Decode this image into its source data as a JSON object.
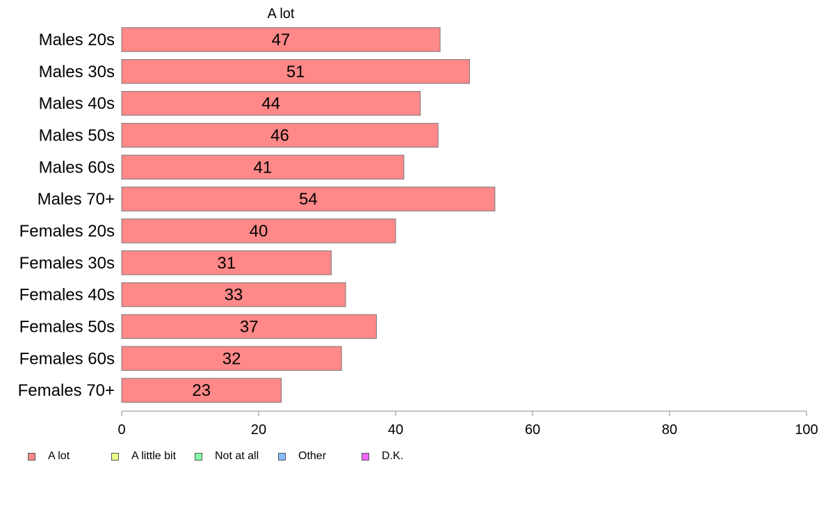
{
  "chart_data": {
    "type": "bar",
    "orientation": "horizontal",
    "title": "A lot",
    "categories": [
      "Males 20s",
      "Males 30s",
      "Males 40s",
      "Males 50s",
      "Males 60s",
      "Males 70+",
      "Females 20s",
      "Females 30s",
      "Females 40s",
      "Females 50s",
      "Females 60s",
      "Females 70+"
    ],
    "values": [
      46.5,
      50.8,
      43.6,
      46.2,
      41.2,
      54.5,
      40.0,
      30.6,
      32.7,
      37.2,
      32.1,
      23.3
    ],
    "data_labels": [
      "47",
      "51",
      "44",
      "46",
      "41",
      "54",
      "40",
      "31",
      "33",
      "37",
      "32",
      "23"
    ],
    "xlim": [
      0,
      100
    ],
    "xticks": [
      "0",
      "20",
      "40",
      "60",
      "80",
      "100"
    ],
    "bar_color": "#ff8888",
    "grid": false,
    "legend_position": "bottom",
    "legend": [
      {
        "label": "A lot",
        "color": "#ff8888"
      },
      {
        "label": "A little bit",
        "color": "#eeff88"
      },
      {
        "label": "Not at all",
        "color": "#88ffaa"
      },
      {
        "label": "Other",
        "color": "#88bbff"
      },
      {
        "label": "D.K.",
        "color": "#ee66ff"
      }
    ]
  }
}
